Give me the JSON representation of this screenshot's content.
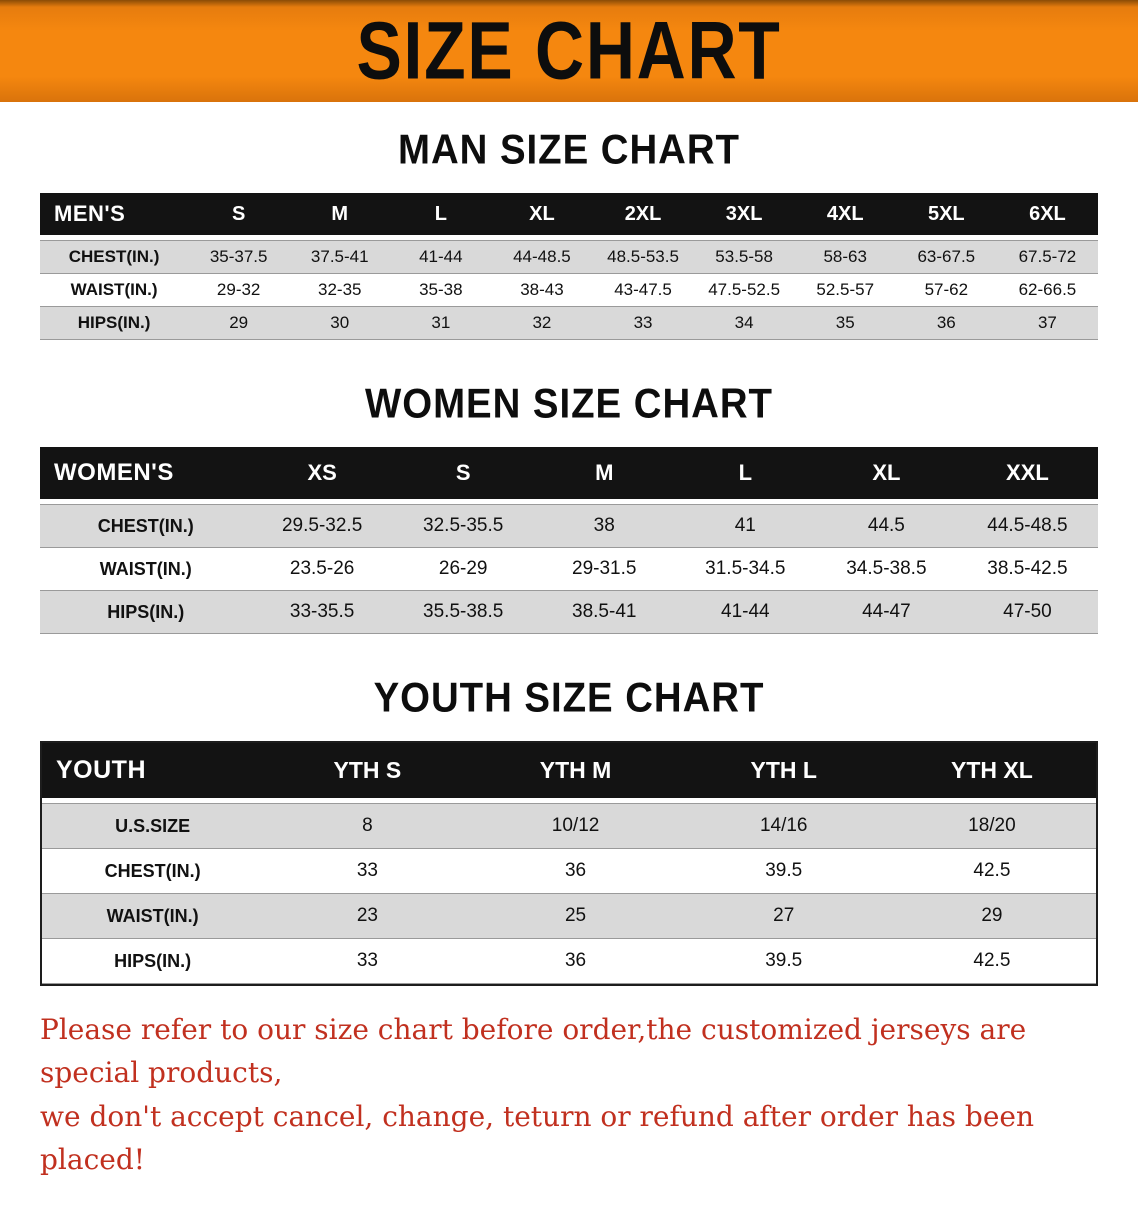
{
  "banner": {
    "title": "SIZE CHART",
    "background_color": "#f5870f",
    "text_color": "#0d0d0d"
  },
  "sections": [
    {
      "id": "men",
      "heading": "MAN SIZE CHART",
      "table": {
        "header": [
          "MEN'S",
          "S",
          "M",
          "L",
          "XL",
          "2XL",
          "3XL",
          "4XL",
          "5XL",
          "6XL"
        ],
        "rows": [
          [
            "CHEST(IN.)",
            "35-37.5",
            "37.5-41",
            "41-44",
            "44-48.5",
            "48.5-53.5",
            "53.5-58",
            "58-63",
            "63-67.5",
            "67.5-72"
          ],
          [
            "WAIST(IN.)",
            "29-32",
            "32-35",
            "35-38",
            "38-43",
            "43-47.5",
            "47.5-52.5",
            "52.5-57",
            "57-62",
            "62-66.5"
          ],
          [
            "HIPS(IN.)",
            "29",
            "30",
            "31",
            "32",
            "33",
            "34",
            "35",
            "36",
            "37"
          ]
        ]
      }
    },
    {
      "id": "women",
      "heading": "WOMEN SIZE CHART",
      "table": {
        "header": [
          "WOMEN'S",
          "XS",
          "S",
          "M",
          "L",
          "XL",
          "XXL"
        ],
        "rows": [
          [
            "CHEST(IN.)",
            "29.5-32.5",
            "32.5-35.5",
            "38",
            "41",
            "44.5",
            "44.5-48.5"
          ],
          [
            "WAIST(IN.)",
            "23.5-26",
            "26-29",
            "29-31.5",
            "31.5-34.5",
            "34.5-38.5",
            "38.5-42.5"
          ],
          [
            "HIPS(IN.)",
            "33-35.5",
            "35.5-38.5",
            "38.5-41",
            "41-44",
            "44-47",
            "47-50"
          ]
        ]
      }
    },
    {
      "id": "youth",
      "heading": "YOUTH SIZE CHART",
      "table": {
        "header": [
          "YOUTH",
          "YTH S",
          "YTH M",
          "YTH L",
          "YTH XL"
        ],
        "rows": [
          [
            "U.S.SIZE",
            "8",
            "10/12",
            "14/16",
            "18/20"
          ],
          [
            "CHEST(IN.)",
            "33",
            "36",
            "39.5",
            "42.5"
          ],
          [
            "WAIST(IN.)",
            "23",
            "25",
            "27",
            "29"
          ],
          [
            "HIPS(IN.)",
            "33",
            "36",
            "39.5",
            "42.5"
          ]
        ]
      }
    }
  ],
  "footer_note": {
    "text_color": "#c1301f",
    "lines": [
      "Please refer to our size chart before order,the customized jerseys are special products,",
      "we don't accept cancel, change, teturn or refund after order has been placed!"
    ]
  }
}
